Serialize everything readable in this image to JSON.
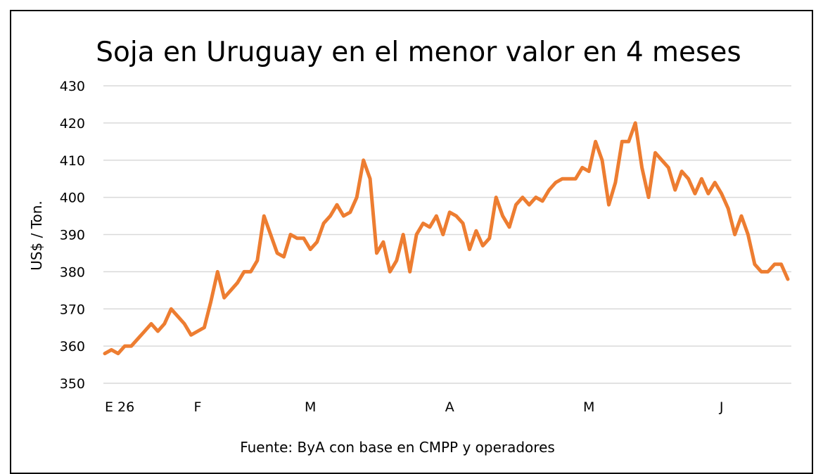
{
  "chart_data": {
    "type": "line",
    "title": "Soja en Uruguay en el menor valor en 4 meses",
    "ylabel": "US$ / Ton.",
    "xlabel": "",
    "source": "Fuente: ByA con base en CMPP y operadores",
    "ylim": [
      350,
      430
    ],
    "y_ticks": [
      350,
      360,
      370,
      380,
      390,
      400,
      410,
      420,
      430
    ],
    "x_tick_labels": [
      {
        "label": "E 26",
        "index": 0
      },
      {
        "label": "F",
        "index": 14
      },
      {
        "label": "M",
        "index": 31
      },
      {
        "label": "A",
        "index": 52
      },
      {
        "label": "M",
        "index": 73
      },
      {
        "label": "J",
        "index": 93
      }
    ],
    "grid": true,
    "legend": "none",
    "color": "#ED7D31",
    "series": [
      {
        "values": [
          358,
          359,
          358,
          360,
          360,
          362,
          364,
          366,
          364,
          366,
          370,
          368,
          366,
          363,
          364,
          365,
          372,
          380,
          373,
          375,
          377,
          380,
          380,
          383,
          395,
          390,
          385,
          384,
          390,
          389,
          389,
          386,
          388,
          393,
          395,
          398,
          395,
          396,
          400,
          410,
          405,
          385,
          388,
          380,
          383,
          390,
          380,
          390,
          393,
          392,
          395,
          390,
          396,
          395,
          393,
          386,
          391,
          387,
          389,
          400,
          395,
          392,
          398,
          400,
          398,
          400,
          399,
          402,
          404,
          405,
          405,
          405,
          408,
          407,
          415,
          410,
          398,
          404,
          415,
          415,
          420,
          408,
          400,
          412,
          410,
          408,
          402,
          407,
          405,
          401,
          405,
          401,
          404,
          401,
          397,
          390,
          395,
          390,
          382,
          380,
          380,
          382,
          382,
          378
        ]
      }
    ]
  }
}
